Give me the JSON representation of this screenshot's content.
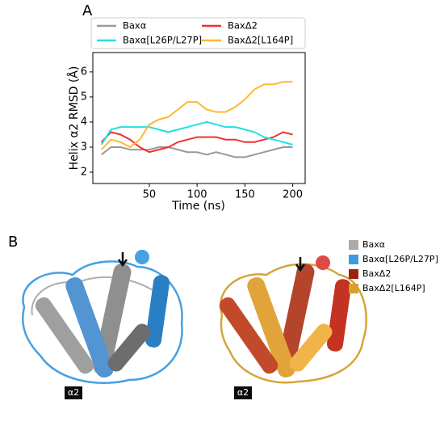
{
  "panel_labels": [
    "A",
    "B"
  ],
  "chart_data": {
    "type": "line",
    "xlabel": "Time (ns)",
    "ylabel": "Helix α2 RMSD (Å)",
    "x": [
      0,
      10,
      20,
      30,
      40,
      50,
      60,
      70,
      80,
      90,
      100,
      110,
      120,
      130,
      140,
      150,
      160,
      170,
      180,
      190,
      200
    ],
    "series": [
      {
        "name": "Baxα",
        "color": "#999999",
        "values": [
          2.7,
          3.0,
          3.0,
          2.9,
          2.9,
          2.9,
          3.0,
          3.0,
          2.9,
          2.8,
          2.8,
          2.7,
          2.8,
          2.7,
          2.6,
          2.6,
          2.7,
          2.8,
          2.9,
          3.0,
          3.0
        ]
      },
      {
        "name": "BaxΔ2",
        "color": "#f03030",
        "values": [
          3.2,
          3.6,
          3.5,
          3.3,
          3.0,
          2.8,
          2.9,
          3.0,
          3.2,
          3.3,
          3.4,
          3.4,
          3.4,
          3.3,
          3.3,
          3.2,
          3.2,
          3.3,
          3.4,
          3.6,
          3.5
        ]
      },
      {
        "name": "Baxα[L26P/L27P]",
        "color": "#22e0e0",
        "values": [
          3.1,
          3.7,
          3.8,
          3.8,
          3.8,
          3.8,
          3.7,
          3.6,
          3.7,
          3.8,
          3.9,
          4.0,
          3.9,
          3.8,
          3.8,
          3.7,
          3.6,
          3.4,
          3.3,
          3.2,
          3.1
        ]
      },
      {
        "name": "BaxΔ2[L164P]",
        "color": "#ffb830",
        "values": [
          2.9,
          3.3,
          3.2,
          3.0,
          3.3,
          3.9,
          4.1,
          4.2,
          4.5,
          4.8,
          4.8,
          4.5,
          4.4,
          4.4,
          4.6,
          4.9,
          5.3,
          5.5,
          5.5,
          5.6,
          5.6
        ]
      }
    ],
    "xlim": [
      -9,
      213
    ],
    "xticks": [
      50,
      100,
      150,
      200
    ],
    "ylim": [
      1.55,
      6.77
    ],
    "yticks": [
      2,
      3,
      4,
      5,
      6
    ]
  },
  "structure_legend": [
    {
      "name": "Baxα",
      "color": "#aaaaaa"
    },
    {
      "name": "Baxα[L26P/L27P]",
      "color": "#3d9be0"
    },
    {
      "name": "BaxΔ2",
      "color": "#a02010"
    },
    {
      "name": "BaxΔ2[L164P]",
      "color": "#d4a030"
    }
  ],
  "helix_labels": [
    "α2",
    "α2"
  ]
}
